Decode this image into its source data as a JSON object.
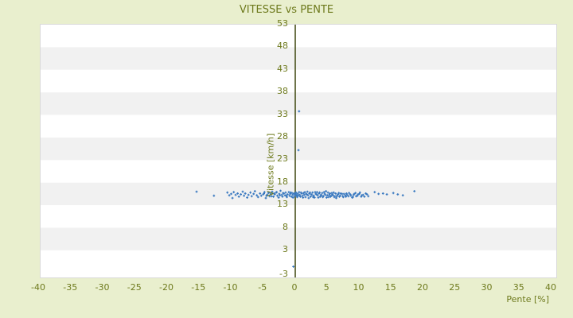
{
  "chart_data": {
    "type": "scatter",
    "title": "VITESSE vs PENTE",
    "xlabel": "Pente [%]",
    "ylabel": "Vitesse [km/h]",
    "xlim": [
      -40,
      40
    ],
    "ylim": [
      -3,
      53
    ],
    "xticks": [
      -40,
      -35,
      -30,
      -25,
      -20,
      -15,
      -10,
      -5,
      0,
      5,
      10,
      15,
      20,
      25,
      30,
      35,
      40
    ],
    "yticks": [
      53,
      48,
      43,
      38,
      33,
      28,
      23,
      18,
      13,
      8,
      3,
      -3
    ],
    "grid": "horizontal-bands-every-5",
    "legend": "none",
    "marker": "small-blue-cross",
    "colors": {
      "page_background": "#e9efce",
      "band_light": "#ffffff",
      "band_dark": "#f1f1f1",
      "plot_border": "#d9d9d9",
      "axis_line": "#3e470e",
      "text": "#6e7a1d",
      "marker": "#3a79c0"
    },
    "points": [
      [
        -15.4,
        16.0
      ],
      [
        -12.7,
        15.1
      ],
      [
        -10.6,
        15.8
      ],
      [
        -10.3,
        15.2
      ],
      [
        -10.0,
        15.5
      ],
      [
        -9.8,
        14.6
      ],
      [
        -9.6,
        15.9
      ],
      [
        -9.3,
        15.3
      ],
      [
        -9.0,
        15.6
      ],
      [
        -8.8,
        14.9
      ],
      [
        -8.5,
        15.4
      ],
      [
        -8.2,
        16.0
      ],
      [
        -8.0,
        15.1
      ],
      [
        -7.8,
        15.6
      ],
      [
        -7.5,
        14.7
      ],
      [
        -7.3,
        15.3
      ],
      [
        -7.0,
        15.8
      ],
      [
        -6.8,
        15.0
      ],
      [
        -6.5,
        15.5
      ],
      [
        -6.3,
        16.1
      ],
      [
        -6.0,
        15.2
      ],
      [
        -5.8,
        14.8
      ],
      [
        -5.5,
        15.6
      ],
      [
        -5.3,
        15.1
      ],
      [
        -5.0,
        15.4
      ],
      [
        -4.9,
        15.6
      ],
      [
        -4.8,
        15.9
      ],
      [
        -4.6,
        14.6
      ],
      [
        -4.5,
        15.1
      ],
      [
        -4.4,
        15.3
      ],
      [
        -4.2,
        15.7
      ],
      [
        -4.1,
        15.8
      ],
      [
        -4.0,
        15.0
      ],
      [
        -3.8,
        15.5
      ],
      [
        -3.7,
        15.0
      ],
      [
        -3.6,
        16.0
      ],
      [
        -3.4,
        14.9
      ],
      [
        -3.3,
        15.6
      ],
      [
        -3.2,
        15.4
      ],
      [
        -3.0,
        15.8
      ],
      [
        -2.9,
        15.9
      ],
      [
        -2.8,
        15.1
      ],
      [
        -2.6,
        14.7
      ],
      [
        -2.5,
        15.5
      ],
      [
        -2.4,
        15.2
      ],
      [
        -2.3,
        16.2
      ],
      [
        -2.1,
        15.3
      ],
      [
        -2.0,
        14.9
      ],
      [
        -1.9,
        15.7
      ],
      [
        -1.8,
        15.6
      ],
      [
        -1.6,
        15.2
      ],
      [
        -1.5,
        15.8
      ],
      [
        -1.4,
        15.1
      ],
      [
        -1.3,
        14.8
      ],
      [
        -1.2,
        15.4
      ],
      [
        -1.0,
        15.9
      ],
      [
        -0.9,
        15.1
      ],
      [
        -0.8,
        15.5
      ],
      [
        -0.7,
        15.8
      ],
      [
        -0.6,
        14.9
      ],
      [
        -0.5,
        15.7
      ],
      [
        -0.4,
        15.3
      ],
      [
        -0.35,
        14.7
      ],
      [
        -0.2,
        15.6
      ],
      [
        -0.1,
        15.0
      ],
      [
        0.0,
        15.4
      ],
      [
        0.1,
        15.8
      ],
      [
        0.15,
        15.7
      ],
      [
        0.2,
        15.2
      ],
      [
        0.3,
        14.8
      ],
      [
        0.4,
        15.5
      ],
      [
        0.45,
        15.1
      ],
      [
        0.6,
        15.9
      ],
      [
        0.7,
        15.3
      ],
      [
        0.8,
        14.9
      ],
      [
        0.9,
        15.8
      ],
      [
        1.0,
        15.6
      ],
      [
        1.1,
        15.1
      ],
      [
        1.2,
        14.7
      ],
      [
        1.3,
        15.7
      ],
      [
        1.4,
        15.3
      ],
      [
        1.5,
        15.9
      ],
      [
        1.6,
        14.8
      ],
      [
        1.7,
        15.5
      ],
      [
        1.8,
        15.4
      ],
      [
        1.9,
        16.0
      ],
      [
        2.0,
        15.2
      ],
      [
        2.1,
        14.6
      ],
      [
        2.2,
        15.6
      ],
      [
        2.3,
        15.8
      ],
      [
        2.4,
        14.9
      ],
      [
        2.5,
        15.4
      ],
      [
        2.6,
        15.3
      ],
      [
        2.7,
        15.8
      ],
      [
        2.8,
        14.8
      ],
      [
        2.9,
        15.1
      ],
      [
        3.0,
        14.7
      ],
      [
        3.1,
        15.9
      ],
      [
        3.2,
        15.5
      ],
      [
        3.3,
        15.4
      ],
      [
        3.4,
        15.9
      ],
      [
        3.5,
        15.2
      ],
      [
        3.6,
        14.7
      ],
      [
        3.7,
        15.6
      ],
      [
        3.8,
        15.8
      ],
      [
        3.9,
        14.9
      ],
      [
        4.0,
        15.3
      ],
      [
        4.1,
        15.2
      ],
      [
        4.2,
        15.7
      ],
      [
        4.3,
        14.8
      ],
      [
        4.4,
        15.0
      ],
      [
        4.5,
        15.9
      ],
      [
        4.6,
        15.5
      ],
      [
        4.7,
        15.3
      ],
      [
        4.8,
        16.1
      ],
      [
        4.9,
        14.7
      ],
      [
        5.0,
        15.2
      ],
      [
        5.1,
        15.8
      ],
      [
        5.2,
        14.8
      ],
      [
        5.3,
        15.3
      ],
      [
        5.4,
        15.6
      ],
      [
        5.5,
        14.9
      ],
      [
        5.6,
        15.1
      ],
      [
        5.7,
        15.7
      ],
      [
        5.8,
        15.4
      ],
      [
        5.9,
        15.2
      ],
      [
        6.0,
        15.8
      ],
      [
        6.1,
        14.8
      ],
      [
        6.2,
        15.0
      ],
      [
        6.3,
        15.6
      ],
      [
        6.4,
        14.6
      ],
      [
        6.5,
        15.0
      ],
      [
        6.6,
        15.3
      ],
      [
        6.7,
        15.4
      ],
      [
        6.8,
        15.7
      ],
      [
        6.9,
        14.9
      ],
      [
        7.0,
        15.1
      ],
      [
        7.1,
        15.6
      ],
      [
        7.3,
        15.5
      ],
      [
        7.4,
        15.0
      ],
      [
        7.5,
        14.8
      ],
      [
        7.6,
        15.5
      ],
      [
        7.8,
        15.2
      ],
      [
        7.9,
        14.9
      ],
      [
        8.0,
        15.6
      ],
      [
        8.1,
        15.3
      ],
      [
        8.3,
        15.0
      ],
      [
        8.4,
        15.7
      ],
      [
        8.6,
        15.4
      ],
      [
        8.7,
        15.1
      ],
      [
        8.9,
        14.7
      ],
      [
        9.0,
        14.8
      ],
      [
        9.1,
        15.3
      ],
      [
        9.2,
        15.5
      ],
      [
        9.4,
        15.7
      ],
      [
        9.5,
        15.0
      ],
      [
        9.7,
        15.1
      ],
      [
        9.8,
        15.4
      ],
      [
        10.0,
        15.5
      ],
      [
        10.1,
        15.8
      ],
      [
        10.3,
        14.9
      ],
      [
        10.4,
        15.2
      ],
      [
        10.6,
        15.3
      ],
      [
        10.8,
        14.9
      ],
      [
        11.0,
        15.6
      ],
      [
        11.2,
        15.4
      ],
      [
        11.4,
        15.0
      ],
      [
        12.4,
        15.9
      ],
      [
        13.0,
        15.5
      ],
      [
        13.7,
        15.6
      ],
      [
        14.3,
        15.4
      ],
      [
        15.3,
        15.7
      ],
      [
        16.0,
        15.4
      ],
      [
        16.8,
        15.2
      ],
      [
        18.6,
        16.1
      ],
      [
        0.6,
        33.8
      ],
      [
        0.5,
        25.2
      ],
      [
        -0.3,
        -0.6
      ]
    ]
  }
}
